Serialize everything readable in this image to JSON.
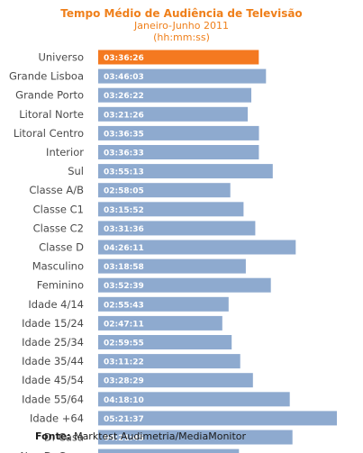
{
  "chart_data": {
    "type": "bar",
    "orientation": "horizontal",
    "title": "Tempo Médio de Audiência  de Televisão",
    "subtitle": "Janeiro-Junho 2011",
    "units": "(hh:mm:ss)",
    "categories": [
      "Universo",
      "Grande Lisboa",
      "Grande Porto",
      "Litoral Norte",
      "Litoral Centro",
      "Interior",
      "Sul",
      "Classe A/B",
      "Classe C1",
      "Classe C2",
      "Classe D",
      "Masculino",
      "Feminino",
      "Idade 4/14",
      "Idade 15/24",
      "Idade 25/34",
      "Idade 35/44",
      "Idade 45/54",
      "Idade 55/64",
      "Idade +64",
      "D. Casa",
      "Nao D. Casa"
    ],
    "values": [
      "03:36:26",
      "03:46:03",
      "03:26:22",
      "03:21:26",
      "03:36:35",
      "03:36:33",
      "03:55:13",
      "02:58:05",
      "03:15:52",
      "03:31:36",
      "04:26:11",
      "03:18:58",
      "03:52:39",
      "02:55:43",
      "02:47:11",
      "02:59:55",
      "03:11:22",
      "03:28:29",
      "04:18:10",
      "05:21:37",
      "04:21:45",
      "03:09:45"
    ],
    "highlight_index": 0,
    "colors": {
      "bar": "#8eaacf",
      "highlight": "#f47920",
      "title": "#ef7f1a",
      "label": "#4a4a4a"
    },
    "grid": false,
    "legend": "none"
  },
  "source": {
    "label": "Fonte:",
    "text": "Marktest Audimetria/MediaMonitor"
  }
}
